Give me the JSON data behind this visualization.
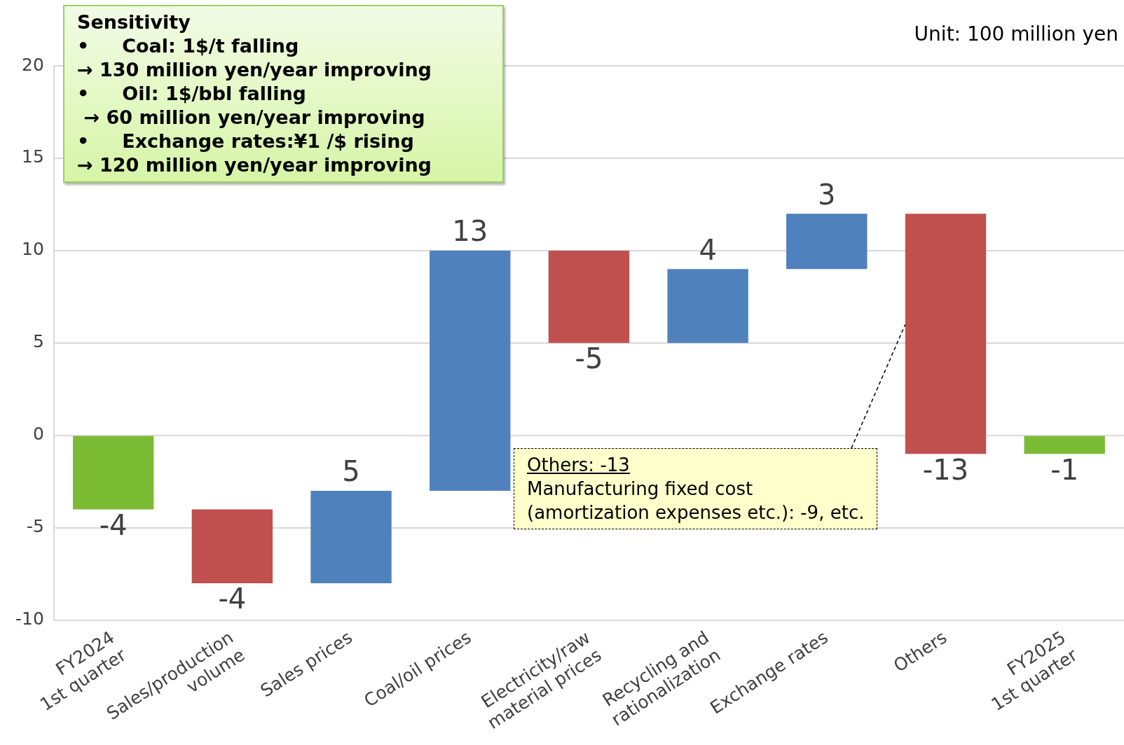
{
  "chart_data": {
    "type": "bar",
    "categories": [
      "FY2024\n1st quarter",
      "Sales/production\nvolume",
      "Sales prices",
      "Coal/oil prices",
      "Electricity/raw\nmaterial prices",
      "Recycling and\nrationalization",
      "Exchange rates",
      "Others",
      "FY2025\n1st quarter"
    ],
    "values": [
      -4,
      -4,
      5,
      13,
      -5,
      4,
      3,
      -13,
      -1
    ],
    "base": [
      0,
      -4,
      -8,
      -3,
      10,
      5,
      9,
      12,
      0
    ],
    "colors": [
      "#7cbc34",
      "#c0504d",
      "#4f81bd",
      "#4f81bd",
      "#c0504d",
      "#4f81bd",
      "#4f81bd",
      "#c0504d",
      "#7cbc34"
    ],
    "ylim": [
      -10,
      20
    ],
    "yticks": [
      -10,
      -5,
      0,
      5,
      10,
      15,
      20
    ],
    "grid": "y",
    "legend": false,
    "data_labels": true,
    "annotations": [
      "Sensitivity\n•     Coal: 1$/t falling\n→ 130 million yen/year improving\n•     Oil: 1$/bbl falling\n → 60 million yen/year improving\n•     Exchange rates:¥1 /$ rising\n→ 120 million yen/year improving",
      "Unit: 100 million yen",
      {
        "text": "Others: -13\nManufacturing fixed cost\n(amortization expenses etc.): -9, etc.",
        "x": "Others",
        "y": 6
      }
    ]
  }
}
